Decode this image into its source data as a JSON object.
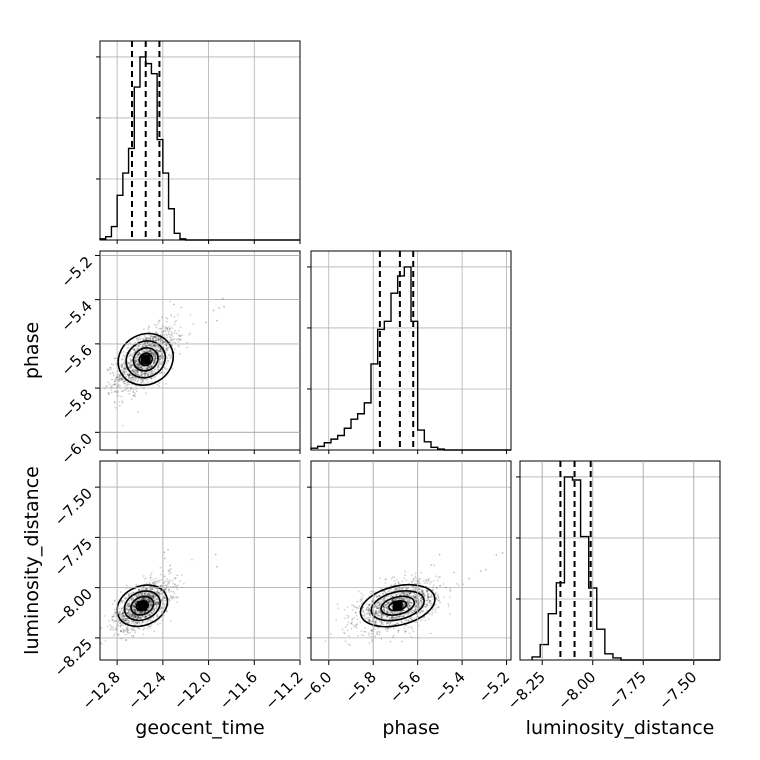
{
  "chart_data": {
    "type": "scatter",
    "kind": "corner",
    "title": "",
    "grid": true,
    "parameters": [
      {
        "name": "geocent_time",
        "label": "geocent_time",
        "range": [
          -12.95,
          -11.2
        ],
        "ticks": [
          -12.8,
          -12.4,
          -12.0,
          -11.6,
          -11.2
        ],
        "tick_labels": [
          "−12.8",
          "−12.4",
          "−12.0",
          "−11.6",
          "−11.2"
        ],
        "quantiles": [
          -12.67,
          -12.55,
          -12.43
        ],
        "hist_bin_edges": [
          -12.95,
          -12.9,
          -12.85,
          -12.8,
          -12.75,
          -12.7,
          -12.65,
          -12.6,
          -12.55,
          -12.5,
          -12.45,
          -12.4,
          -12.35,
          -12.3,
          -12.25,
          -12.2,
          -12.15,
          -12.1
        ],
        "hist_counts": [
          1,
          3,
          12,
          40,
          60,
          82,
          137,
          164,
          158,
          149,
          90,
          60,
          28,
          6,
          1,
          0,
          0
        ]
      },
      {
        "name": "phase",
        "label": "phase",
        "range": [
          -6.08,
          -5.18
        ],
        "ticks": [
          -6.0,
          -5.8,
          -5.6,
          -5.4,
          -5.2
        ],
        "tick_labels": [
          "−6.0",
          "−5.8",
          "−5.6",
          "−5.4",
          "−5.2"
        ],
        "quantiles": [
          -5.77,
          -5.68,
          -5.62
        ],
        "hist_bin_edges": [
          -6.08,
          -6.05,
          -6.02,
          -5.99,
          -5.96,
          -5.93,
          -5.9,
          -5.87,
          -5.84,
          -5.81,
          -5.78,
          -5.75,
          -5.72,
          -5.69,
          -5.66,
          -5.63,
          -5.6,
          -5.57,
          -5.54,
          -5.51,
          -5.48
        ],
        "hist_counts": [
          2,
          4,
          8,
          12,
          16,
          24,
          34,
          40,
          52,
          95,
          133,
          142,
          173,
          192,
          202,
          142,
          22,
          9,
          3,
          1
        ]
      },
      {
        "name": "luminosity_distance",
        "label": "luminosity_distance",
        "range": [
          -8.36,
          -7.37
        ],
        "ticks": [
          -8.25,
          -8.0,
          -7.75,
          -7.5
        ],
        "tick_labels": [
          "−8.25",
          "−8.00",
          "−7.75",
          "−7.50"
        ],
        "quantiles": [
          -8.16,
          -8.09,
          -8.01
        ],
        "hist_bin_edges": [
          -8.3,
          -8.26,
          -8.22,
          -8.18,
          -8.14,
          -8.1,
          -8.06,
          -8.02,
          -7.98,
          -7.94,
          -7.9,
          -7.86
        ],
        "hist_counts": [
          3,
          15,
          45,
          75,
          178,
          175,
          120,
          70,
          30,
          6,
          2
        ]
      }
    ],
    "pairs": [
      {
        "x": "geocent_time",
        "y": "phase",
        "peak": [
          -12.55,
          -5.67
        ],
        "spread": [
          0.13,
          0.07
        ],
        "rho": 0.6
      },
      {
        "x": "geocent_time",
        "y": "luminosity_distance",
        "peak": [
          -12.58,
          -8.09
        ],
        "spread": [
          0.12,
          0.06
        ],
        "rho": 0.55
      },
      {
        "x": "phase",
        "y": "luminosity_distance",
        "peak": [
          -5.69,
          -8.09
        ],
        "spread": [
          0.09,
          0.06
        ],
        "rho": 0.45
      }
    ],
    "colors": {
      "points": "#000000",
      "density": "#000000",
      "lines": "#000000"
    }
  }
}
